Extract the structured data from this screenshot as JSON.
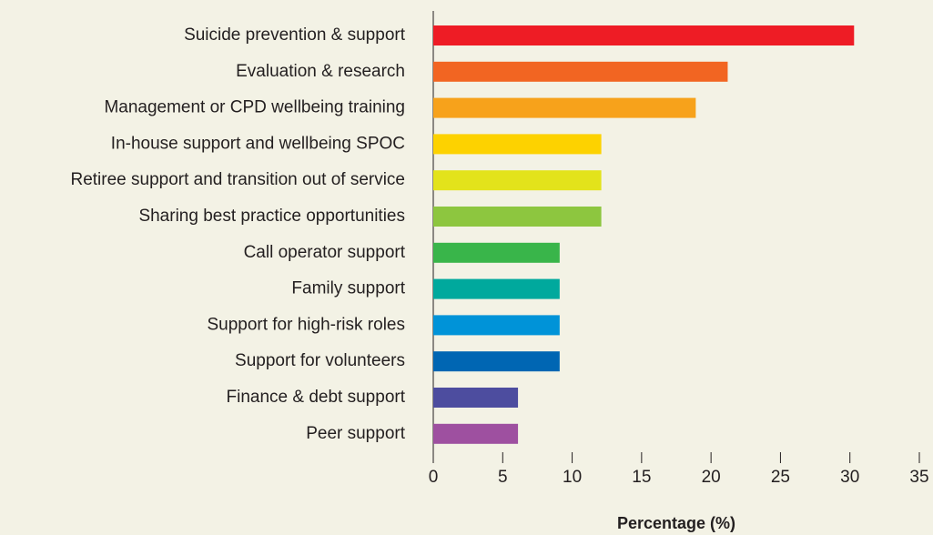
{
  "chart_data": {
    "type": "barh",
    "categories": [
      "Suicide prevention & support",
      "Evaluation & research",
      "Management or CPD wellbeing training",
      "In-house support and wellbeing SPOC",
      "Retiree support and transition out of service",
      "Sharing best practice opportunities",
      "Call operator support",
      "Family support",
      "Support for high-risk roles",
      "Support for volunteers",
      "Finance & debt support",
      "Peer support"
    ],
    "values": [
      30.3,
      21.2,
      18.9,
      12.1,
      12.1,
      12.1,
      9.1,
      9.1,
      9.1,
      9.1,
      6.1,
      6.1
    ],
    "colors": [
      "#ee1c25",
      "#f26522",
      "#f7a21b",
      "#fdd200",
      "#e3e31b",
      "#8dc63f",
      "#39b54a",
      "#00a99d",
      "#0093d8",
      "#0066b3",
      "#4d4d9f",
      "#9e50a0"
    ],
    "xlabel": "Percentage (%)",
    "xlim": [
      0,
      35
    ],
    "xticks": [
      0,
      5,
      10,
      15,
      20,
      25,
      30,
      35
    ]
  }
}
